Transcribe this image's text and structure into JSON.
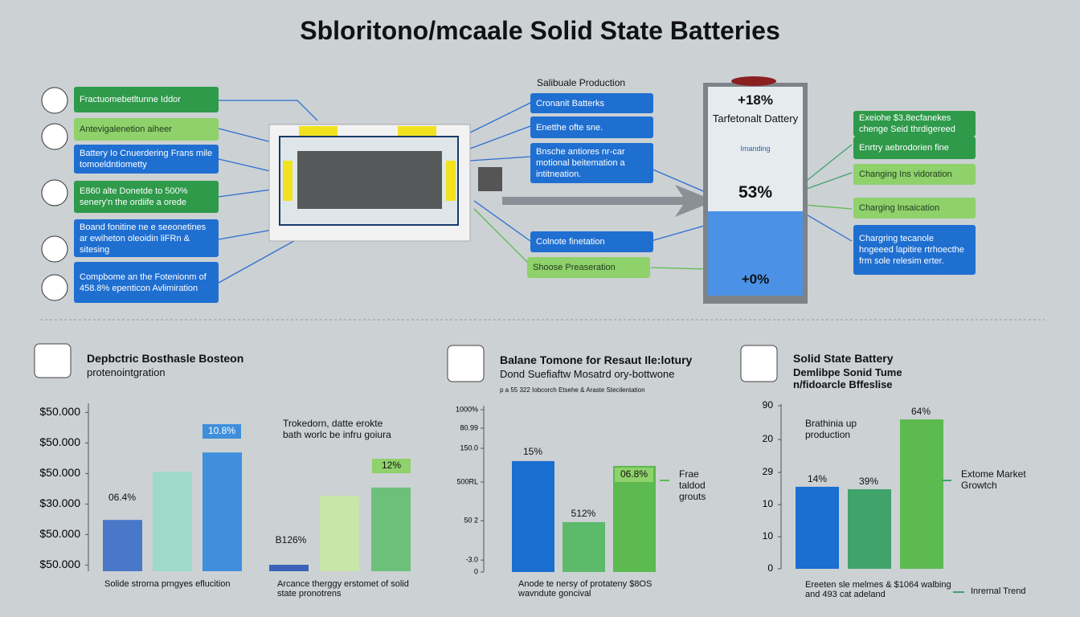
{
  "title": "Sbloritono/mcaale Solid State Batteries",
  "left_boxes": [
    "Fractuomebetltunne Iddor",
    "Antevigalenetion aiheer",
    "Battery Io Cnuerdering Frans mile tomoeldntiometty",
    "E860 alte Donetde to 500% senery'n the ordiife a orede",
    "Boand fonitine ne e seeonetines ar ewiheton oleoidin liFRn & sitesing",
    "Compbome an the Fotenionm of 458.8% epenticon Avlimiration"
  ],
  "center_header": "Salibuale Production",
  "center_boxes": [
    "Cronanit Batterks",
    "Enetthe ofte sne.",
    "Bnsche antiores nr-car motional beitemation a intitneation.",
    "Colnote finetation",
    "Shoose Preaseration"
  ],
  "battery": {
    "top": "+18%",
    "name": "Tarfetonalt Dattery",
    "sub": "Imanding",
    "level": "53%",
    "bottom": "+0%"
  },
  "right_boxes": [
    "Exeiohe $3.8ecfanekes chenge Seid thrdigereed",
    "Enrtry aebrodorien fine",
    "Changing Ins vidoration",
    "Charging Insaication",
    "Chargring tecanole hngeeed lapitire rtrhoecthe frm sole relesim erter."
  ],
  "chart_data": [
    {
      "type": "bar",
      "title": "Depbctric Bosthasle Bosteon",
      "subtitle": "protenointgration",
      "values": [
        1.68,
        3.26,
        3.89,
        0.21,
        2.47,
        2.74
      ],
      "colors": [
        "#4a78c8",
        "#9fd9c8",
        "#3f8fdc",
        "#3a62b8",
        "#c8e6a8",
        "#6cc07a"
      ],
      "annotations": [
        "06.4%",
        "10.8%",
        "B126%",
        "12%"
      ],
      "note": "Trokedorn, datte erokte bath worlc be infru goiura",
      "captions": [
        "Solide strorna prngyes eflucition",
        "Arcance therggy erstomet of solid state pronotrens"
      ],
      "ylim": [
        0,
        5.5
      ],
      "yticks": [
        {
          "value": 0.2,
          "label": "$50.000"
        },
        {
          "value": 1.2,
          "label": "$50.000"
        },
        {
          "value": 2.2,
          "label": "$30.000"
        },
        {
          "value": 3.2,
          "label": "$50.000"
        },
        {
          "value": 4.2,
          "label": "$50.000"
        },
        {
          "value": 5.2,
          "label": "$50.000"
        }
      ]
    },
    {
      "type": "bar",
      "title": "Balane Tomone for Resaut Ile:lotury",
      "subtitle": "Dond Suefiaftw Mosatrd ory-bottwone",
      "note": "p a 55 322 Iobcorch Etsehe & Araste Stecilentation",
      "values": [
        66.7,
        30,
        63.8
      ],
      "colors": [
        "#1a6fd0",
        "#5cba6a",
        "#5cba50"
      ],
      "annotations": [
        "15%",
        "512%",
        "06.8%"
      ],
      "legend": "Frae taldod grouts",
      "legend_color": "#5cba50",
      "captions": [
        "Anode te nersy of protateny $8OS wavndute goncival"
      ],
      "ylim": [
        0,
        100
      ],
      "yticks": [
        0,
        {
          "value": 7.2,
          "label": "-3.0"
        },
        {
          "value": 30.9,
          "label": "50 2"
        },
        {
          "value": 54.1,
          "label": "500RL"
        },
        {
          "value": 74.4,
          "label": "150.0"
        },
        {
          "value": 86.5,
          "label": "80.99"
        },
        {
          "value": 97.6,
          "label": "1000%"
        }
      ]
    },
    {
      "type": "bar",
      "title": "Solid State Battery",
      "subtitle": "Demlibpe Sonid Tume n/fidoarcle Bffeslise",
      "note": "Brathinia up production",
      "values": [
        49.8,
        48.3,
        90.7
      ],
      "colors": [
        "#1a6fd0",
        "#3fa36a",
        "#5cba50"
      ],
      "annotations": [
        "14%",
        "39%",
        "64%"
      ],
      "legend": "Extome Market Growtch",
      "legend_color": "#3fa36a",
      "legend2": "Inrernal Trend",
      "legend2_color": "#3fa36a",
      "captions": [
        "Ereeten sle melmes & $1064 walbing and 493 cat adeland"
      ],
      "ylim": [
        0,
        100
      ],
      "yticks": [
        0,
        {
          "value": 19.5,
          "label": "10"
        },
        {
          "value": 39,
          "label": "10"
        },
        {
          "value": 58.5,
          "label": "29"
        },
        {
          "value": 78.5,
          "label": "20"
        },
        {
          "value": 99,
          "label": "90"
        }
      ]
    }
  ]
}
